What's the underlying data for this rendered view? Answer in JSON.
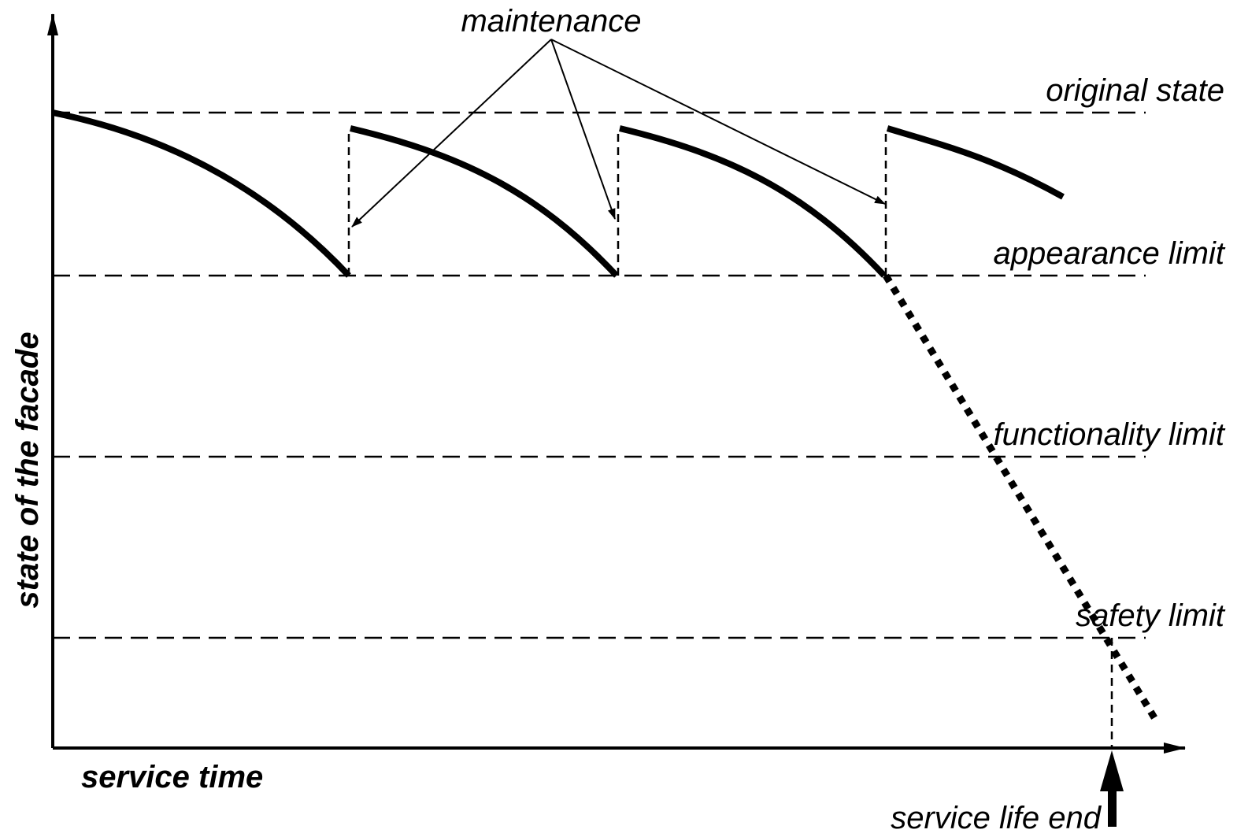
{
  "labels": {
    "maintenance": "maintenance",
    "original_state": "original state",
    "appearance_limit": "appearance limit",
    "functionality_limit": "functionality limit",
    "safety_limit": "safety limit"
  },
  "axes": {
    "y_label": "state of the facade",
    "x_label": "service time"
  },
  "annotation": "service life end"
}
